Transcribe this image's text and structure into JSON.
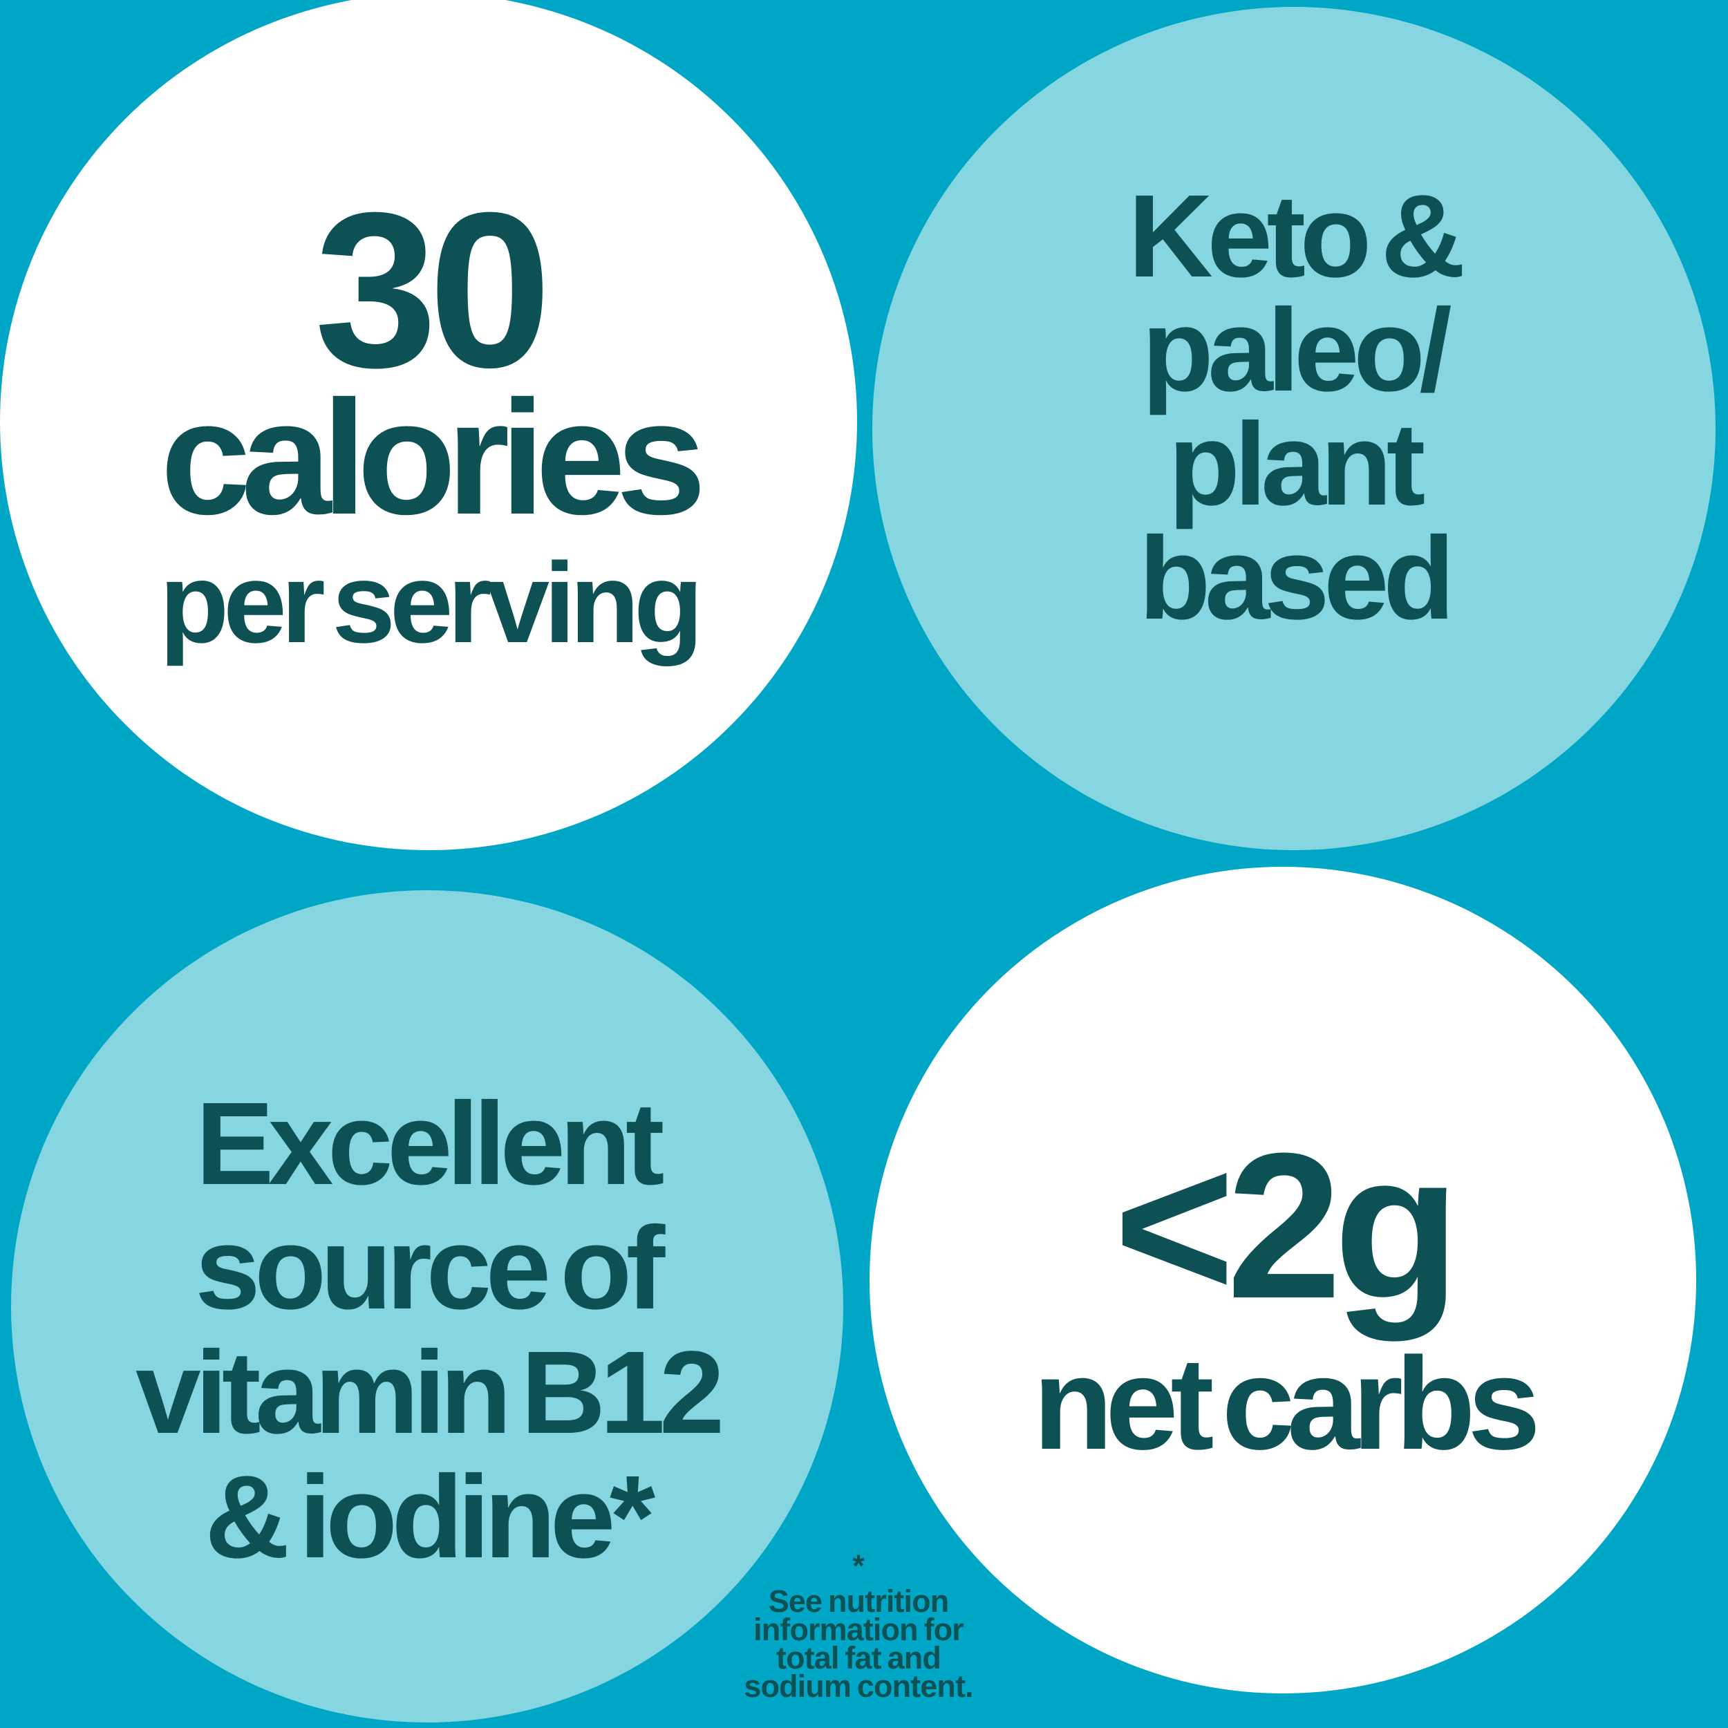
{
  "colors": {
    "background": "#00A6C5",
    "light_circle": "#86D6E1",
    "white_circle": "#FFFFFF",
    "text": "#0E5155"
  },
  "badges": {
    "calories": {
      "value": "30",
      "unit": "calories",
      "qualifier": "per serving"
    },
    "diet": {
      "text": "Keto &\npaleo/\nplant\nbased"
    },
    "nutrients": {
      "text": "Excellent\nsource of\nvitamin B12\n& iodine*"
    },
    "carbs": {
      "value": "<2g",
      "label": "net carbs"
    }
  },
  "footnote": {
    "marker": "*",
    "text": "See nutrition\ninformation for\ntotal fat and\nsodium content."
  }
}
